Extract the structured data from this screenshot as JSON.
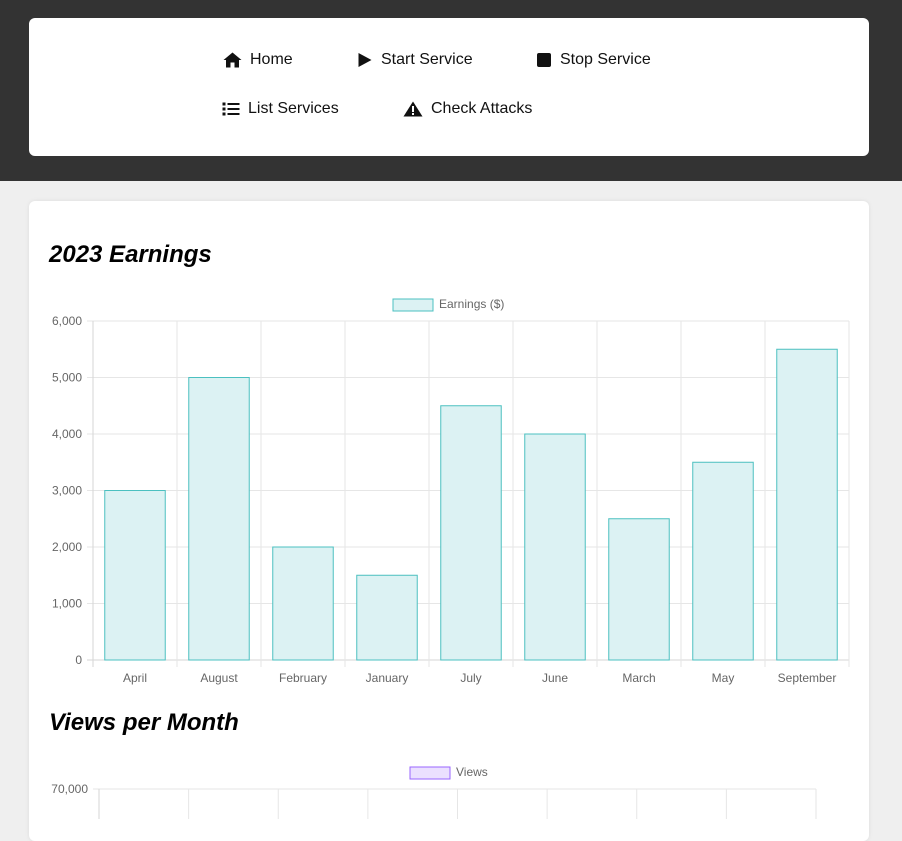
{
  "nav": {
    "items": [
      {
        "label": "Home",
        "icon": "home-icon"
      },
      {
        "label": "Start Service",
        "icon": "play-icon"
      },
      {
        "label": "Stop Service",
        "icon": "stop-icon"
      },
      {
        "label": "List Services",
        "icon": "list-icon"
      },
      {
        "label": "Check Attacks",
        "icon": "warning-icon"
      }
    ]
  },
  "charts": {
    "earnings_title": "2023 Earnings",
    "views_title": "Views per Month"
  },
  "chart_data": [
    {
      "type": "bar",
      "title": "2023 Earnings",
      "categories": [
        "April",
        "August",
        "February",
        "January",
        "July",
        "June",
        "March",
        "May",
        "September"
      ],
      "series": [
        {
          "name": "Earnings ($)",
          "values": [
            3000,
            5000,
            2000,
            1500,
            4500,
            4000,
            2500,
            3500,
            5500
          ]
        }
      ],
      "ylim": [
        0,
        6000
      ],
      "yticks": [
        "0",
        "1,000",
        "2,000",
        "3,000",
        "4,000",
        "5,000",
        "6,000"
      ],
      "grid": true,
      "legend": "top-center",
      "colors": {
        "fill": "#dcf2f3",
        "stroke": "#4bc0c0"
      }
    },
    {
      "type": "bar",
      "title": "Views per Month",
      "series": [
        {
          "name": "Views",
          "values": []
        }
      ],
      "yticks": [
        "70,000"
      ],
      "grid": true,
      "legend": "top-center",
      "colors": {
        "fill": "#ebe0ff",
        "stroke": "#9966ff"
      }
    }
  ]
}
